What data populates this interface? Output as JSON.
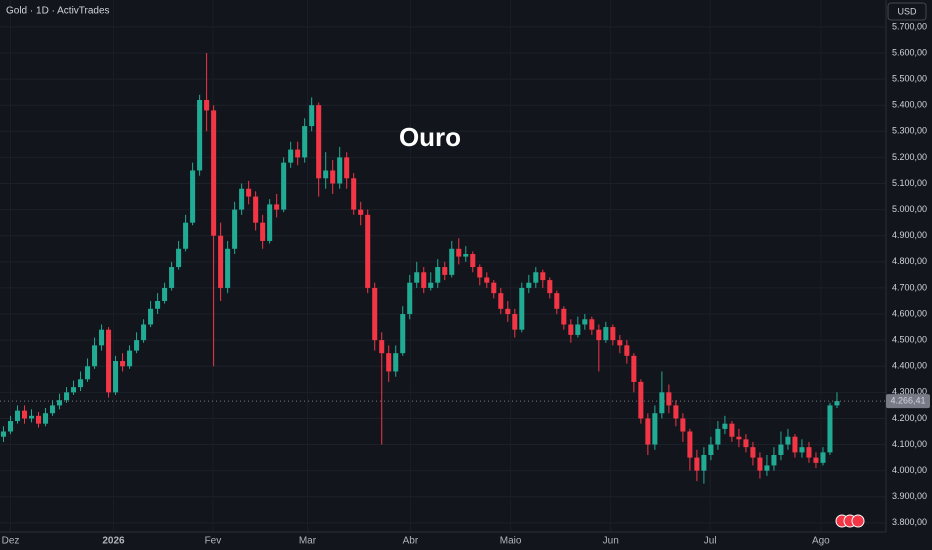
{
  "chart_data": {
    "type": "candlestick",
    "title": "Gold · 1D · ActivTrades",
    "annotation": "Ouro",
    "currency": "USD",
    "up_color": "#22ab94",
    "down_color": "#f23645",
    "grid": true,
    "ylim": [
      3765,
      5803
    ],
    "yticks": [
      {
        "value": 3800,
        "label": "3.800,00"
      },
      {
        "value": 3900,
        "label": "3.900,00"
      },
      {
        "value": 4000,
        "label": "4.000,00"
      },
      {
        "value": 4100,
        "label": "4.100,00"
      },
      {
        "value": 4200,
        "label": "4.200,00"
      },
      {
        "value": 4300,
        "label": "4.300,00"
      },
      {
        "value": 4400,
        "label": "4.400,00"
      },
      {
        "value": 4500,
        "label": "4.500,00"
      },
      {
        "value": 4600,
        "label": "4.600,00"
      },
      {
        "value": 4700,
        "label": "4.700,00"
      },
      {
        "value": 4800,
        "label": "4.800,00"
      },
      {
        "value": 4900,
        "label": "4.900,00"
      },
      {
        "value": 5000,
        "label": "5.000,00"
      },
      {
        "value": 5100,
        "label": "5.100,00"
      },
      {
        "value": 5200,
        "label": "5.200,00"
      },
      {
        "value": 5300,
        "label": "5.300,00"
      },
      {
        "value": 5400,
        "label": "5.400,00"
      },
      {
        "value": 5500,
        "label": "5.500,00"
      },
      {
        "value": 5600,
        "label": "5.600,00"
      },
      {
        "value": 5700,
        "label": "5.700,00"
      }
    ],
    "xlim": [
      -0.5,
      126
    ],
    "xticks": [
      {
        "value": 1,
        "label": "Dez"
      },
      {
        "value": 15.7,
        "label": "2026"
      },
      {
        "value": 29.9,
        "label": "Fev"
      },
      {
        "value": 43.4,
        "label": "Mar"
      },
      {
        "value": 58.1,
        "label": "Abr"
      },
      {
        "value": 72.4,
        "label": "Maio"
      },
      {
        "value": 86.7,
        "label": "Jun"
      },
      {
        "value": 100.9,
        "label": "Jul"
      },
      {
        "value": 116.7,
        "label": "Ago"
      }
    ],
    "last_price": {
      "value": 4266.41,
      "label": "4.266,41"
    },
    "open": [
      4130,
      4150,
      4190,
      4230,
      4200,
      4210,
      4180,
      4220,
      4250,
      4270,
      4300,
      4320,
      4350,
      4400,
      4480,
      4540,
      4300,
      4420,
      4400,
      4460,
      4500,
      4560,
      4620,
      4650,
      4700,
      4780,
      4850,
      4950,
      5150,
      5420,
      5380,
      4900,
      4700,
      4850,
      5000,
      5080,
      5050,
      4950,
      4880,
      5020,
      5000,
      5180,
      5230,
      5200,
      5320,
      5400,
      5120,
      5150,
      5100,
      5200,
      5120,
      5000,
      4980,
      4700,
      4500,
      4450,
      4380,
      4450,
      4600,
      4720,
      4760,
      4700,
      4720,
      4780,
      4750,
      4850,
      4820,
      4830,
      4780,
      4740,
      4720,
      4680,
      4620,
      4600,
      4540,
      4700,
      4720,
      4760,
      4730,
      4680,
      4620,
      4560,
      4520,
      4560,
      4580,
      4540,
      4500,
      4550,
      4500,
      4480,
      4440,
      4340,
      4200,
      4100,
      4220,
      4300,
      4250,
      4200,
      4150,
      4050,
      4000,
      4060,
      4100,
      4160,
      4180,
      4130,
      4120,
      4090,
      4050,
      4000,
      4020,
      4060,
      4100,
      4130,
      4070,
      4090,
      4050,
      4030,
      4070,
      4250
    ],
    "high": [
      4170,
      4210,
      4250,
      4250,
      4235,
      4225,
      4240,
      4270,
      4295,
      4320,
      4345,
      4380,
      4430,
      4510,
      4560,
      4550,
      4440,
      4450,
      4480,
      4530,
      4580,
      4650,
      4680,
      4720,
      4800,
      4880,
      4980,
      5180,
      5440,
      5600,
      5400,
      4950,
      4880,
      5030,
      5100,
      5110,
      5070,
      4980,
      5040,
      5060,
      5200,
      5260,
      5260,
      5350,
      5430,
      5410,
      5220,
      5190,
      5240,
      5220,
      5140,
      5030,
      5000,
      4720,
      4530,
      4480,
      4480,
      4630,
      4750,
      4800,
      4780,
      4760,
      4810,
      4800,
      4880,
      4890,
      4860,
      4840,
      4790,
      4760,
      4730,
      4700,
      4650,
      4620,
      4720,
      4750,
      4780,
      4770,
      4740,
      4690,
      4630,
      4580,
      4590,
      4600,
      4590,
      4560,
      4570,
      4560,
      4520,
      4500,
      4450,
      4350,
      4220,
      4250,
      4380,
      4330,
      4270,
      4220,
      4160,
      4080,
      4090,
      4130,
      4190,
      4210,
      4190,
      4160,
      4140,
      4110,
      4070,
      4060,
      4090,
      4150,
      4160,
      4140,
      4120,
      4110,
      4070,
      4090,
      4260,
      4300
    ],
    "low": [
      4110,
      4140,
      4180,
      4180,
      4185,
      4165,
      4170,
      4210,
      4235,
      4260,
      4290,
      4305,
      4340,
      4390,
      4460,
      4280,
      4290,
      4380,
      4390,
      4450,
      4490,
      4550,
      4600,
      4640,
      4690,
      4770,
      4840,
      4940,
      5130,
      5300,
      4400,
      4650,
      4680,
      4830,
      4980,
      5020,
      4920,
      4850,
      4870,
      4970,
      4990,
      5160,
      5170,
      5180,
      5300,
      5050,
      5080,
      5060,
      5080,
      5080,
      4980,
      4940,
      4680,
      4460,
      4100,
      4340,
      4360,
      4440,
      4580,
      4700,
      4680,
      4690,
      4700,
      4730,
      4740,
      4790,
      4800,
      4760,
      4710,
      4700,
      4660,
      4600,
      4570,
      4510,
      4530,
      4680,
      4700,
      4700,
      4660,
      4600,
      4540,
      4490,
      4510,
      4540,
      4520,
      4380,
      4490,
      4480,
      4450,
      4410,
      4300,
      4180,
      4060,
      4080,
      4200,
      4220,
      4170,
      4110,
      4000,
      3960,
      3950,
      4040,
      4080,
      4140,
      4110,
      4090,
      4070,
      4020,
      3970,
      3980,
      4000,
      4040,
      4080,
      4050,
      4050,
      4030,
      4010,
      4020,
      4060,
      4240
    ],
    "close": [
      4150,
      4190,
      4230,
      4200,
      4210,
      4180,
      4220,
      4250,
      4270,
      4300,
      4320,
      4350,
      4400,
      4480,
      4540,
      4300,
      4420,
      4400,
      4460,
      4500,
      4560,
      4620,
      4650,
      4700,
      4780,
      4850,
      4950,
      5150,
      5420,
      5380,
      4900,
      4700,
      4850,
      5000,
      5080,
      5050,
      4950,
      4880,
      5020,
      5000,
      5180,
      5230,
      5200,
      5320,
      5400,
      5120,
      5150,
      5100,
      5200,
      5120,
      5000,
      4980,
      4700,
      4500,
      4450,
      4380,
      4450,
      4600,
      4720,
      4760,
      4700,
      4720,
      4780,
      4750,
      4850,
      4820,
      4830,
      4780,
      4740,
      4720,
      4680,
      4620,
      4600,
      4540,
      4700,
      4720,
      4760,
      4730,
      4680,
      4620,
      4560,
      4520,
      4560,
      4580,
      4540,
      4500,
      4550,
      4500,
      4480,
      4440,
      4340,
      4200,
      4100,
      4220,
      4300,
      4250,
      4200,
      4150,
      4050,
      4000,
      4060,
      4100,
      4160,
      4180,
      4130,
      4120,
      4090,
      4050,
      4000,
      4020,
      4060,
      4100,
      4130,
      4070,
      4090,
      4050,
      4030,
      4070,
      4250,
      4266.41
    ]
  }
}
